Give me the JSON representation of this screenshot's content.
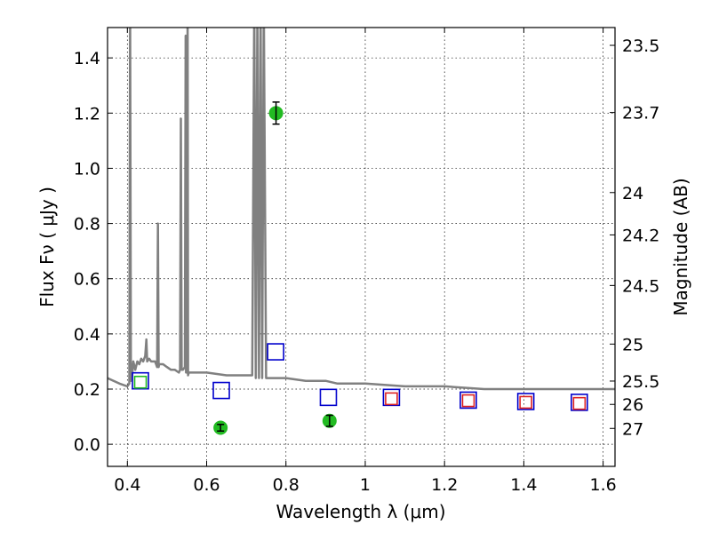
{
  "chart_data": {
    "type": "scatter",
    "title": "",
    "xlabel": "Wavelength  λ (μm)",
    "ylabel": "Flux  Fν  ( μJy )",
    "y2label": "Magnitude (AB)",
    "xlim": [
      0.35,
      1.63
    ],
    "ylim": [
      -0.08,
      1.51
    ],
    "grid": true,
    "legend": "none",
    "x_ticks": [
      {
        "value": 0.4,
        "label": "0.4"
      },
      {
        "value": 0.6,
        "label": "0.6"
      },
      {
        "value": 0.8,
        "label": "0.8"
      },
      {
        "value": 1.0,
        "label": "1"
      },
      {
        "value": 1.2,
        "label": "1.2"
      },
      {
        "value": 1.4,
        "label": "1.4"
      },
      {
        "value": 1.6,
        "label": "1.6"
      }
    ],
    "y_ticks": [
      {
        "value": 0.0,
        "label": "0.0"
      },
      {
        "value": 0.2,
        "label": "0.2"
      },
      {
        "value": 0.4,
        "label": "0.4"
      },
      {
        "value": 0.6,
        "label": "0.6"
      },
      {
        "value": 0.8,
        "label": "0.8"
      },
      {
        "value": 1.0,
        "label": "1.0"
      },
      {
        "value": 1.2,
        "label": "1.2"
      },
      {
        "value": 1.4,
        "label": "1.4"
      }
    ],
    "mag_ticks": [
      {
        "value": 23.5,
        "label": "23.5"
      },
      {
        "value": 23.7,
        "label": "23.7"
      },
      {
        "value": 24,
        "label": "24"
      },
      {
        "value": 24.2,
        "label": "24.2"
      },
      {
        "value": 24.5,
        "label": "24.5"
      },
      {
        "value": 25,
        "label": "25"
      },
      {
        "value": 25.5,
        "label": "25.5"
      },
      {
        "value": 26,
        "label": "26"
      },
      {
        "value": 27,
        "label": "27"
      }
    ],
    "series": [
      {
        "kind": "line",
        "color": "#808080",
        "x": [
          0.35,
          0.38,
          0.4,
          0.405,
          0.407,
          0.409,
          0.412,
          0.415,
          0.42,
          0.425,
          0.43,
          0.435,
          0.44,
          0.445,
          0.448,
          0.45,
          0.455,
          0.46,
          0.47,
          0.475,
          0.477,
          0.479,
          0.48,
          0.49,
          0.5,
          0.51,
          0.52,
          0.53,
          0.533,
          0.535,
          0.537,
          0.54,
          0.545,
          0.547,
          0.548,
          0.549,
          0.55,
          0.552,
          0.553,
          0.555,
          0.56,
          0.6,
          0.65,
          0.7,
          0.715,
          0.72,
          0.724,
          0.728,
          0.732,
          0.736,
          0.74,
          0.744,
          0.75,
          0.8,
          0.85,
          0.9,
          0.93,
          0.95,
          1.0,
          1.1,
          1.2,
          1.3,
          1.4,
          1.5,
          1.63
        ],
        "y": [
          0.24,
          0.22,
          0.21,
          0.22,
          1.6,
          0.23,
          0.25,
          0.3,
          0.27,
          0.3,
          0.29,
          0.31,
          0.3,
          0.32,
          0.38,
          0.3,
          0.31,
          0.3,
          0.3,
          0.28,
          0.8,
          0.28,
          0.29,
          0.29,
          0.28,
          0.27,
          0.27,
          0.26,
          0.27,
          1.18,
          0.27,
          0.27,
          0.28,
          1.48,
          0.26,
          1.48,
          0.26,
          1.6,
          0.25,
          0.26,
          0.26,
          0.26,
          0.25,
          0.25,
          0.25,
          1.6,
          0.24,
          1.6,
          0.24,
          1.6,
          0.24,
          1.6,
          0.24,
          0.24,
          0.23,
          0.23,
          0.22,
          0.22,
          0.22,
          0.21,
          0.21,
          0.2,
          0.2,
          0.2,
          0.2
        ]
      },
      {
        "kind": "points",
        "marker": "circle",
        "color": "#22bb22",
        "x": [
          0.635,
          0.775,
          0.91
        ],
        "y": [
          0.06,
          1.2,
          0.085
        ],
        "yerr": [
          0.012,
          0.04,
          0.02
        ]
      },
      {
        "kind": "points",
        "marker": "square",
        "color": "#0000cc",
        "size": 18,
        "x": [
          0.433,
          0.637,
          0.774,
          0.907,
          1.066,
          1.26,
          1.405,
          1.54
        ],
        "y": [
          0.23,
          0.195,
          0.335,
          0.17,
          0.17,
          0.16,
          0.155,
          0.152
        ]
      },
      {
        "kind": "points",
        "marker": "square",
        "color": "#dd2222",
        "size": 13,
        "x": [
          1.066,
          1.26,
          1.405,
          1.54
        ],
        "y": [
          0.165,
          0.158,
          0.152,
          0.148
        ]
      },
      {
        "kind": "points",
        "marker": "square",
        "color": "#22bb22",
        "size": 13,
        "x": [
          0.433
        ],
        "y": [
          0.225
        ]
      }
    ]
  }
}
